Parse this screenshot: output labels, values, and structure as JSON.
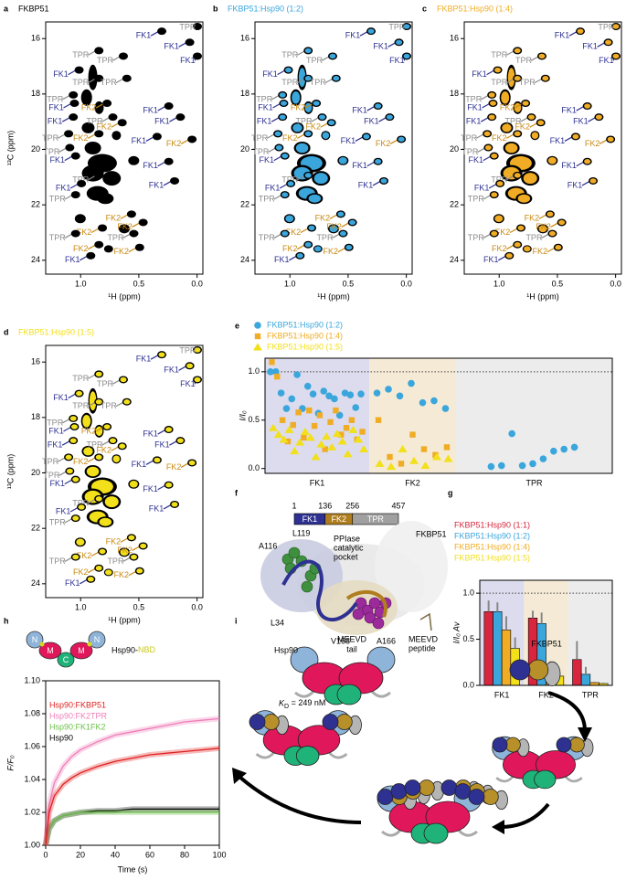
{
  "nmr": {
    "x_label": "¹H (ppm)",
    "y_label": "¹³C (ppm)",
    "xlim": [
      1.3,
      -0.05
    ],
    "ylim": [
      15.4,
      24.5
    ],
    "xticks": [
      {
        "value": 1,
        "label": "1.0"
      },
      {
        "value": 0.5,
        "label": "0.5"
      },
      {
        "value": 0,
        "label": "0.0"
      }
    ],
    "yticks": [
      16,
      18,
      20,
      22,
      24
    ],
    "label_colors": {
      "FK1": "#2e3192",
      "FK2": "#c98a12",
      "TPR": "#8c8c8c"
    },
    "panels": [
      {
        "letter": "a",
        "title": "FKBP51",
        "color": "#000000"
      },
      {
        "letter": "b",
        "title": "FKBP51:Hsp90 (1:2)",
        "color": "#3aa6dc"
      },
      {
        "letter": "c",
        "title": "FKBP51:Hsp90 (1:4)",
        "color": "#f0ac24"
      },
      {
        "letter": "d",
        "title": "FKBP51:Hsp90 (1:5)",
        "color": "#f2e01b"
      }
    ],
    "peak_labels": [
      {
        "label": "FK1",
        "h_ppm": 0.46,
        "c_ppm": 15.9
      },
      {
        "label": "TPR",
        "h_ppm": 0.08,
        "c_ppm": 15.6
      },
      {
        "label": "FK1",
        "h_ppm": 0.22,
        "c_ppm": 16.3
      },
      {
        "label": "FK1",
        "h_ppm": 0.08,
        "c_ppm": 16.8
      },
      {
        "label": "TPR",
        "h_ppm": 1.0,
        "c_ppm": 16.6
      },
      {
        "label": "TPR",
        "h_ppm": 0.79,
        "c_ppm": 16.8
      },
      {
        "label": "FK1",
        "h_ppm": 1.17,
        "c_ppm": 17.3
      },
      {
        "label": "TPR",
        "h_ppm": 1.0,
        "c_ppm": 17.6
      },
      {
        "label": "TPR",
        "h_ppm": 0.76,
        "c_ppm": 17.6
      },
      {
        "label": "TPR",
        "h_ppm": 1.22,
        "c_ppm": 18.2
      },
      {
        "label": "FK1",
        "h_ppm": 1.21,
        "c_ppm": 18.5
      },
      {
        "label": "FK2",
        "h_ppm": 0.93,
        "c_ppm": 18.5
      },
      {
        "label": "FK1",
        "h_ppm": 0.4,
        "c_ppm": 18.6
      },
      {
        "label": "FK1",
        "h_ppm": 0.3,
        "c_ppm": 19.0
      },
      {
        "label": "FK1",
        "h_ppm": 1.22,
        "c_ppm": 19.0
      },
      {
        "label": "TPR",
        "h_ppm": 0.88,
        "c_ppm": 19.0
      },
      {
        "label": "FK2",
        "h_ppm": 0.8,
        "c_ppm": 19.2
      },
      {
        "label": "TPR",
        "h_ppm": 1.26,
        "c_ppm": 19.6
      },
      {
        "label": "FK2",
        "h_ppm": 1.0,
        "c_ppm": 19.6
      },
      {
        "label": "FK1",
        "h_ppm": 0.5,
        "c_ppm": 19.7
      },
      {
        "label": "FK2",
        "h_ppm": 0.2,
        "c_ppm": 19.8
      },
      {
        "label": "TPR",
        "h_ppm": 1.25,
        "c_ppm": 20.1
      },
      {
        "label": "FK1",
        "h_ppm": 1.2,
        "c_ppm": 20.4
      },
      {
        "label": "FK1",
        "h_ppm": 0.4,
        "c_ppm": 20.6
      },
      {
        "label": "TPR",
        "h_ppm": 1.0,
        "c_ppm": 21.1
      },
      {
        "label": "FK1",
        "h_ppm": 0.35,
        "c_ppm": 21.3
      },
      {
        "label": "FK1",
        "h_ppm": 1.15,
        "c_ppm": 21.4
      },
      {
        "label": "TPR",
        "h_ppm": 1.2,
        "c_ppm": 21.8
      },
      {
        "label": "FK2",
        "h_ppm": 0.72,
        "c_ppm": 22.5
      },
      {
        "label": "FK2",
        "h_ppm": 0.62,
        "c_ppm": 22.8
      },
      {
        "label": "FK2",
        "h_ppm": 0.97,
        "c_ppm": 23.0
      },
      {
        "label": "TPR",
        "h_ppm": 1.2,
        "c_ppm": 23.2
      },
      {
        "label": "TPR",
        "h_ppm": 0.7,
        "c_ppm": 23.2
      },
      {
        "label": "FK2",
        "h_ppm": 1.0,
        "c_ppm": 23.6
      },
      {
        "label": "FK2",
        "h_ppm": 0.65,
        "c_ppm": 23.7
      },
      {
        "label": "FK1",
        "h_ppm": 1.07,
        "c_ppm": 24.0
      }
    ]
  },
  "panel_e": {
    "letter": "e",
    "y_label": "I/I₀",
    "ylim": [
      -0.05,
      1.14
    ],
    "yticks": [
      {
        "value": 0,
        "label": "0.0"
      },
      {
        "value": 0.5,
        "label": "0.5"
      },
      {
        "value": 1,
        "label": "1.0"
      }
    ],
    "hline": 1,
    "groups": [
      {
        "name": "FK1",
        "color": "#dcdcee"
      },
      {
        "name": "FK2",
        "color": "#f5ead5"
      },
      {
        "name": "TPR",
        "color": "#ececec"
      }
    ],
    "series": [
      {
        "name": "FKBP51:Hsp90 (1:2)",
        "color": "#3aa6dc",
        "marker": "circle",
        "values": [
          [
            1.0,
            1.0,
            0.78,
            0.62,
            0.72,
            0.97,
            0.62,
            0.85,
            0.77,
            0.57,
            0.8,
            0.75,
            0.72,
            0.55,
            0.78,
            0.76,
            0.63,
            0.77
          ],
          [
            0.78,
            0.82,
            0.75,
            0.88,
            0.68,
            0.7,
            0.62
          ],
          [
            0.02,
            0.03,
            0.36,
            0.03,
            0.05,
            0.1,
            0.18,
            0.2,
            0.22
          ]
        ]
      },
      {
        "name": "FKBP51:Hsp90 (1:4)",
        "color": "#f0ac24",
        "marker": "square",
        "values": [
          [
            1.1,
            0.95,
            0.5,
            0.28,
            0.45,
            0.58,
            0.32,
            0.6,
            0.44,
            0.55,
            0.2,
            0.48,
            0.6,
            0.35,
            0.42,
            0.5,
            0.3,
            0.38
          ],
          [
            0.5,
            0.12,
            0.05,
            0.35,
            0.2,
            0.14,
            0.22
          ],
          []
        ]
      },
      {
        "name": "FKBP51:Hsp90 (1:5)",
        "color": "#f2e01b",
        "marker": "triangle",
        "values": [
          [
            0.42,
            0.35,
            0.3,
            0.4,
            0.18,
            0.27,
            0.38,
            0.32,
            0.12,
            0.25,
            0.33,
            0.22,
            0.36,
            0.28,
            0.15,
            0.4,
            0.3,
            0.2
          ],
          [
            0.05,
            0.02,
            0.2,
            0.08,
            0.03,
            0.12,
            0.1
          ],
          []
        ]
      }
    ]
  },
  "panel_f": {
    "letter": "f",
    "domain_bounds": [
      1,
      136,
      256,
      457
    ],
    "domains": [
      {
        "name": "FK1",
        "color": "#2e3192"
      },
      {
        "name": "FK2",
        "color": "#b07e1e"
      },
      {
        "name": "TPR",
        "color": "#a0a0a0"
      }
    ],
    "labels": {
      "protein": "FKBP51",
      "a116": "A116",
      "l119": "L119",
      "pocket": [
        "PPIase",
        "catalytic",
        "pocket"
      ],
      "l34": "L34",
      "v168": "V168",
      "a166": "A166",
      "peptide": [
        "MEEVD",
        "peptide"
      ]
    }
  },
  "panel_g": {
    "letter": "g",
    "y_label": "I/I₀ Av",
    "ylim": [
      0,
      1.14
    ],
    "yticks": [
      {
        "value": 0,
        "label": "0.0"
      },
      {
        "value": 0.5,
        "label": "0.5"
      },
      {
        "value": 1,
        "label": "1.0"
      }
    ],
    "hline": 1,
    "groups": [
      {
        "name": "FK1",
        "color": "#dcdcee"
      },
      {
        "name": "FK2",
        "color": "#f5ead5"
      },
      {
        "name": "TPR",
        "color": "#ececec"
      }
    ],
    "series": [
      {
        "name": "FKBP51:Hsp90 (1:1)",
        "color": "#d7263d",
        "values": [
          0.8,
          0.73,
          0.28
        ],
        "errors": [
          0.12,
          0.08,
          0.2
        ]
      },
      {
        "name": "FKBP51:Hsp90 (1:2)",
        "color": "#3aa6dc",
        "values": [
          0.8,
          0.67,
          0.12
        ],
        "errors": [
          0.1,
          0.12,
          0.08
        ]
      },
      {
        "name": "FKBP51:Hsp90 (1:4)",
        "color": "#f0ac24",
        "values": [
          0.6,
          0.2,
          0.03
        ],
        "errors": [
          0.15,
          0.06,
          0.01
        ]
      },
      {
        "name": "FKBP51:Hsp90 (1:5)",
        "color": "#f2e01b",
        "values": [
          0.4,
          0.1,
          0.02
        ],
        "errors": [
          0.12,
          0.05,
          0.01
        ]
      }
    ]
  },
  "panel_h": {
    "letter": "h",
    "cartoon_title": "Hsp90-",
    "cartoon_tag": "NBD",
    "cartoon_domains": [
      "N",
      "M",
      "C",
      "M",
      "N"
    ],
    "x_label": "Time (s)",
    "y_label": "F/F₀",
    "xlim": [
      0,
      100
    ],
    "ylim": [
      1.0,
      1.1
    ],
    "xticks": [
      0,
      20,
      40,
      60,
      80,
      100
    ],
    "yticks": [
      {
        "value": 1.0,
        "label": "1.00"
      },
      {
        "value": 1.02,
        "label": "1.02"
      },
      {
        "value": 1.04,
        "label": "1.04"
      },
      {
        "value": 1.06,
        "label": "1.06"
      },
      {
        "value": 1.08,
        "label": "1.08"
      },
      {
        "value": 1.1,
        "label": "1.10"
      }
    ],
    "x": [
      0,
      2,
      5,
      10,
      15,
      20,
      30,
      40,
      50,
      60,
      70,
      80,
      90,
      100
    ],
    "series": [
      {
        "name": "Hsp90:FKBP51",
        "color": "#e02020",
        "values": [
          1.0,
          1.02,
          1.03,
          1.037,
          1.041,
          1.044,
          1.048,
          1.051,
          1.053,
          1.055,
          1.056,
          1.057,
          1.058,
          1.059
        ]
      },
      {
        "name": "Hsp90:FK2TPR",
        "color": "#ef7fb8",
        "values": [
          1.0,
          1.025,
          1.038,
          1.048,
          1.054,
          1.058,
          1.063,
          1.067,
          1.069,
          1.071,
          1.073,
          1.075,
          1.076,
          1.077
        ]
      },
      {
        "name": "Hsp90:FK1FK2",
        "color": "#6cc04a",
        "values": [
          1.0,
          1.01,
          1.015,
          1.018,
          1.019,
          1.02,
          1.02,
          1.02,
          1.02,
          1.02,
          1.02,
          1.02,
          1.02,
          1.02
        ]
      },
      {
        "name": "Hsp90",
        "color": "#000000",
        "values": [
          1.0,
          1.01,
          1.015,
          1.018,
          1.019,
          1.02,
          1.021,
          1.021,
          1.022,
          1.022,
          1.022,
          1.022,
          1.022,
          1.022
        ]
      }
    ]
  },
  "panel_i": {
    "letter": "i",
    "hsp90": "Hsp90",
    "tail": [
      "MEEVD",
      "tail"
    ],
    "fkbp51": "FKBP51",
    "kd": {
      "symbol": "K",
      "subscript": "D",
      "rest": " = 249 nM"
    }
  }
}
